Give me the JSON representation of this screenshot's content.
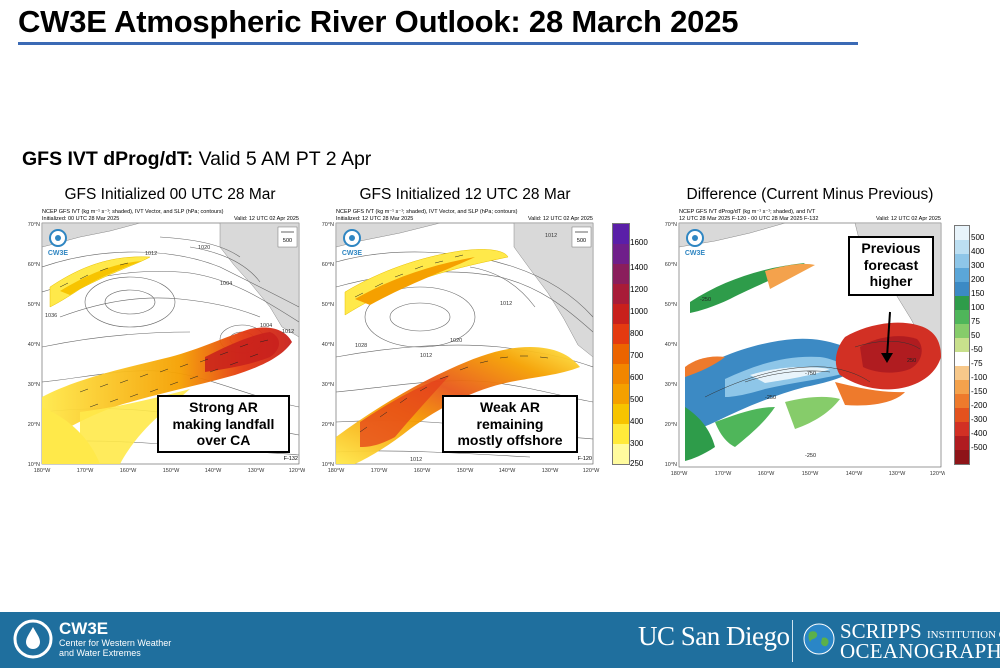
{
  "slide": {
    "title": "CW3E Atmospheric River Outlook: 28 March 2025",
    "subtitle_bold": "GFS IVT dProg/dT:",
    "subtitle_rest": " Valid 5 AM PT 2 Apr"
  },
  "panels": [
    {
      "title": "GFS Initialized 00 UTC 28 Mar",
      "header_line1": "NCEP GFS IVT (kg m⁻¹ s⁻¹; shaded), IVT Vector, and SLP (hPa; contours)",
      "header_line2_left": "Initialized: 00 UTC 28 Mar 2025",
      "header_line2_right": "Valid: 12 UTC 02 Apr 2025",
      "lead": "F-132",
      "vector_ref": "500",
      "callout": [
        "Strong AR",
        "making landfall",
        "over CA"
      ]
    },
    {
      "title": "GFS Initialized 12 UTC 28 Mar",
      "header_line1": "NCEP GFS IVT (kg m⁻¹ s⁻¹; shaded), IVT Vector, and SLP (hPa; contours)",
      "header_line2_left": "Initialized: 12 UTC 28 Mar 2025",
      "header_line2_right": "Valid: 12 UTC 02 Apr 2025",
      "lead": "F-120",
      "vector_ref": "500",
      "callout": [
        "Weak AR",
        "remaining",
        "mostly offshore"
      ]
    },
    {
      "title": "Difference (Current Minus Previous)",
      "header_line1": "NCEP GFS IVT dProg/dT (kg m⁻¹ s⁻¹; shaded), and IVT",
      "header_line2_left": "12 UTC 28 Mar 2025 F-120 - 00 UTC 28 Mar 2025 F-132",
      "header_line2_right": "Valid: 12 UTC 02 Apr 2025",
      "callout": [
        "Previous",
        "forecast",
        "higher"
      ]
    }
  ],
  "axes": {
    "lat_labels": [
      "70°N",
      "60°N",
      "50°N",
      "40°N",
      "30°N",
      "20°N",
      "10°N"
    ],
    "lon_labels": [
      "180°W",
      "170°W",
      "160°W",
      "150°W",
      "140°W",
      "130°W",
      "120°W"
    ]
  },
  "slp_contour_labels": [
    "1012",
    "1020",
    "1004",
    "1036",
    "1028",
    "1012",
    "1004",
    "1012"
  ],
  "diff_contour_labels": [
    "-250",
    "-750",
    "-250",
    "250",
    "-250"
  ],
  "logo_text": "CW3E",
  "ivt_colorbar": {
    "labels": [
      "1600",
      "1400",
      "1200",
      "1000",
      "800",
      "700",
      "600",
      "500",
      "400",
      "300",
      "250"
    ],
    "colors": [
      "#fffb9e",
      "#ffea3a",
      "#f7c400",
      "#f5a000",
      "#f28600",
      "#ec6400",
      "#e43a10",
      "#c8201c",
      "#a81c38",
      "#8a1e5c",
      "#6f1f8a",
      "#5a1fa8"
    ]
  },
  "diff_colorbar": {
    "labels": [
      "500",
      "400",
      "300",
      "200",
      "150",
      "100",
      "75",
      "50",
      "-50",
      "-75",
      "-100",
      "-150",
      "-200",
      "-300",
      "-400",
      "-500"
    ],
    "colors": [
      "#e8f4fb",
      "#bcdff2",
      "#8ec6e8",
      "#5ba6d8",
      "#3c8ac4",
      "#2e9c4a",
      "#4fb65a",
      "#86cc6a",
      "#c8e08c",
      "#ffffff",
      "#f7c88a",
      "#f4a24c",
      "#ee7a2c",
      "#e3521e",
      "#d23024",
      "#b01c20",
      "#8e1418"
    ]
  },
  "footer": {
    "cw3e_name": "CW3E",
    "cw3e_sub1": "Center for Western Weather",
    "cw3e_sub2": "and Water Extremes",
    "ucsd": "UC San Diego",
    "scripps1": "SCRIPPS",
    "scripps1_small": "INSTITUTION OF",
    "scripps2": "OCEANOGRAPHY"
  }
}
